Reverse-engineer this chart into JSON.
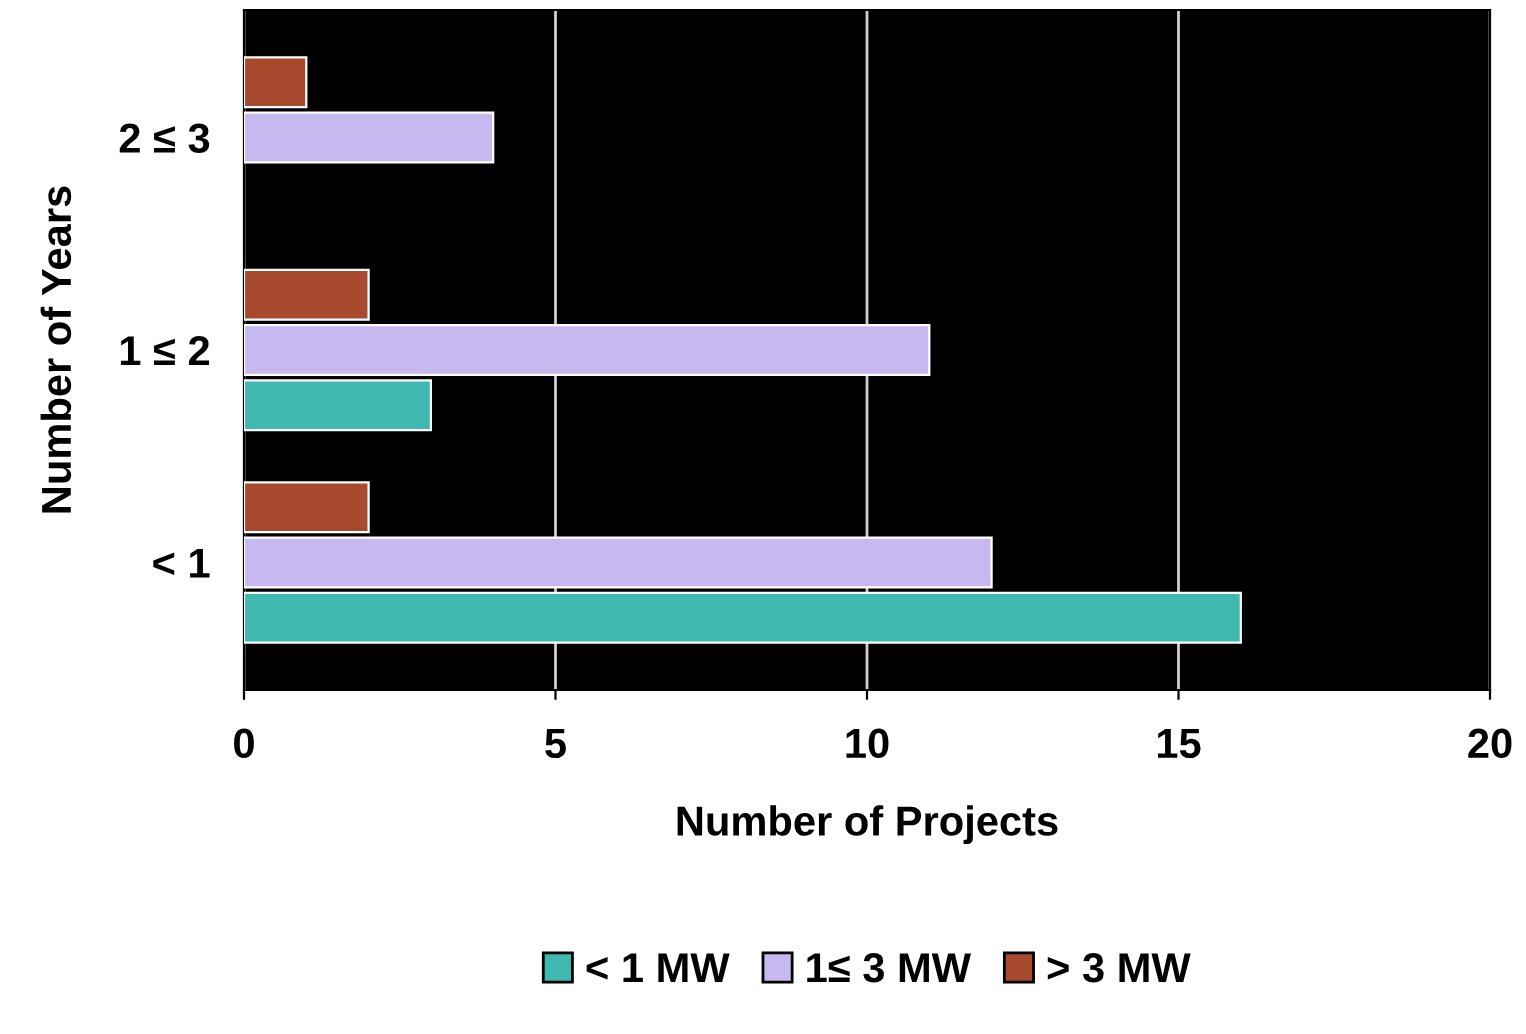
{
  "chart_data": {
    "type": "bar",
    "orientation": "horizontal",
    "xlabel": "Number of Projects",
    "ylabel": "Number of Years",
    "categories": [
      "2 ≤ 3",
      "1 ≤ 2",
      "< 1"
    ],
    "series": [
      {
        "name": "< 1 MW",
        "color": "#3fb8b0",
        "values": [
          null,
          3,
          16
        ]
      },
      {
        "name": "1≤ 3 MW",
        "color": "#c8b8f0",
        "values": [
          4,
          11,
          12
        ]
      },
      {
        "name": "> 3 MW",
        "color": "#a84a2e",
        "values": [
          1,
          2,
          2
        ]
      }
    ],
    "xlim": [
      0,
      20
    ],
    "xticks": [
      0,
      5,
      10,
      15,
      20
    ],
    "grid": "x",
    "legend": "bottom"
  }
}
